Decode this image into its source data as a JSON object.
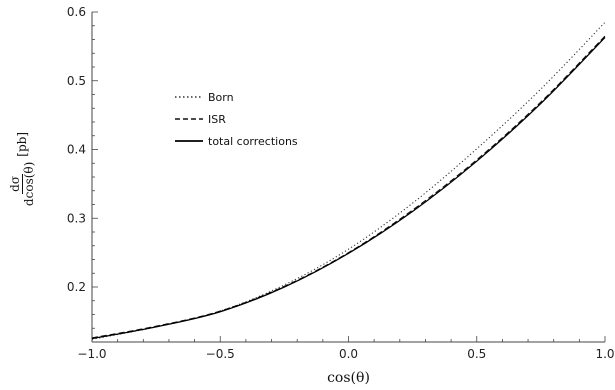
{
  "chart_data": {
    "type": "line",
    "xlabel": "cos(θ)",
    "ylabel": {
      "numerator": "dσ",
      "denominator": "dcos(θ)",
      "unit": "[pb]"
    },
    "xlim": [
      -1.0,
      1.0
    ],
    "ylim": [
      0.12,
      0.6
    ],
    "x_ticks": [
      -1.0,
      -0.5,
      0.0,
      0.5,
      1.0
    ],
    "x_tick_labels": [
      "−1.0",
      "−0.5",
      "0.0",
      "0.5",
      "1.0"
    ],
    "y_ticks": [
      0.2,
      0.3,
      0.4,
      0.5,
      0.6
    ],
    "y_tick_labels": [
      "0.2",
      "0.3",
      "0.4",
      "0.5",
      "0.6"
    ],
    "grid": false,
    "legend": {
      "placement": "upper-left"
    },
    "series": [
      {
        "name": "Born",
        "style": "dotted",
        "color": "#333333",
        "x": [
          -1.0,
          -0.75,
          -0.5,
          -0.25,
          0.0,
          0.25,
          0.5,
          0.75,
          1.0
        ],
        "y": [
          0.124,
          0.142,
          0.165,
          0.203,
          0.255,
          0.322,
          0.401,
          0.488,
          0.585
        ]
      },
      {
        "name": "ISR",
        "style": "dashed",
        "color": "#111111",
        "x": [
          -1.0,
          -0.75,
          -0.5,
          -0.25,
          0.0,
          0.25,
          0.5,
          0.75,
          1.0
        ],
        "y": [
          0.126,
          0.143,
          0.165,
          0.201,
          0.25,
          0.312,
          0.385,
          0.469,
          0.565
        ]
      },
      {
        "name": "total corrections",
        "style": "solid",
        "color": "#000000",
        "x": [
          -1.0,
          -0.75,
          -0.5,
          -0.25,
          0.0,
          0.25,
          0.5,
          0.75,
          1.0
        ],
        "y": [
          0.125,
          0.142,
          0.164,
          0.2,
          0.249,
          0.31,
          0.383,
          0.467,
          0.563
        ]
      }
    ]
  }
}
